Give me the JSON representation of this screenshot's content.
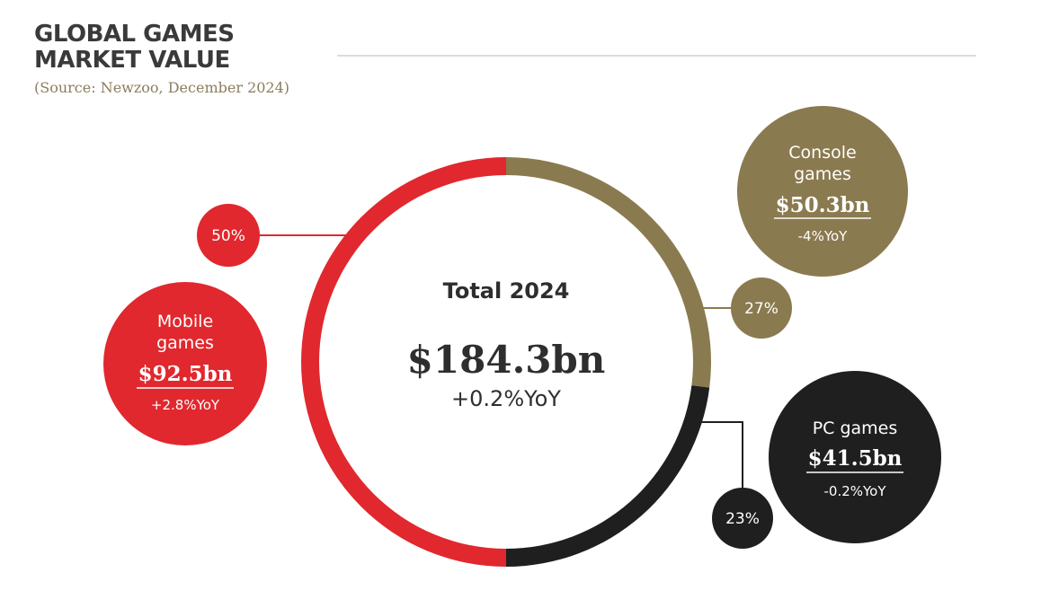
{
  "header": {
    "title_line1": "GLOBAL GAMES",
    "title_line2": "MARKET VALUE",
    "source": "(Source: Newzoo, December 2024)"
  },
  "colors": {
    "mobile": "#e0282e",
    "console": "#8a7a4f",
    "pc": "#1f1f1f",
    "connector_mobile": "#e0282e",
    "connector_console": "#8a7a4f",
    "connector_pc": "#1f1f1f"
  },
  "chart_data": {
    "type": "pie",
    "title": "Total 2024",
    "total_value": "$184.3bn",
    "total_yoy": "+0.2%YoY",
    "series": [
      {
        "name": "Mobile\ngames",
        "name_lines": [
          "Mobile",
          "games"
        ],
        "share": 50,
        "share_label": "50%",
        "value": 92.5,
        "value_label": "$92.5bn",
        "yoy": "+2.8%YoY",
        "color": "#e0282e"
      },
      {
        "name": "Console games",
        "name_lines": [
          "Console",
          "games"
        ],
        "share": 27,
        "share_label": "27%",
        "value": 50.3,
        "value_label": "$50.3bn",
        "yoy": "-4%YoY",
        "color": "#8a7a4f"
      },
      {
        "name": "PC games",
        "name_lines": [
          "PC games"
        ],
        "share": 23,
        "share_label": "23%",
        "value": 41.5,
        "value_label": "$41.5bn",
        "yoy": "-0.2%YoY",
        "color": "#1f1f1f"
      }
    ]
  }
}
